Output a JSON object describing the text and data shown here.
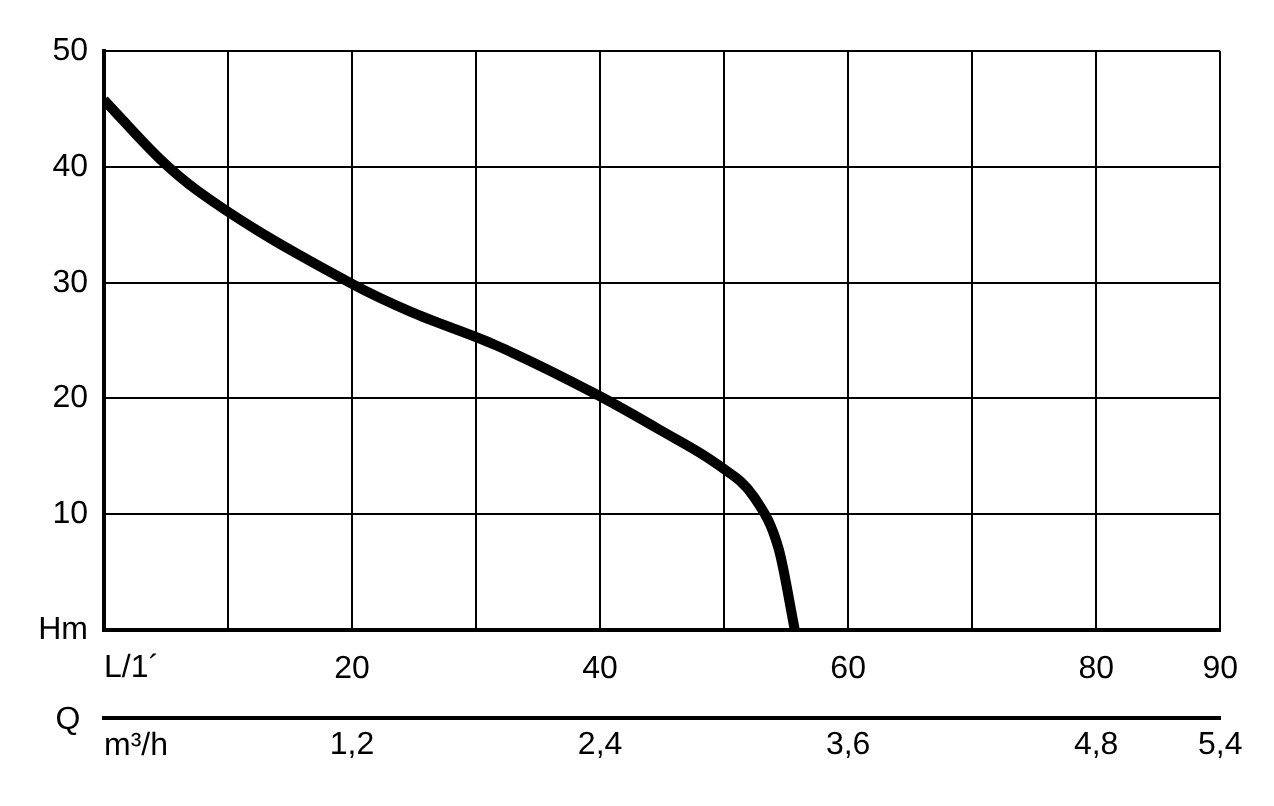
{
  "chart_data": {
    "type": "line",
    "xlabel": "L/1´",
    "x2label": "m³/h",
    "annotations": [
      "Q"
    ],
    "x": [
      0,
      4.5,
      7.6,
      20,
      24.7,
      31.6,
      39.8,
      44.8,
      49.6,
      52.4,
      54.4,
      55.7
    ],
    "series": [
      {
        "color": "#000000",
        "values": [
          45.8,
          40.7,
          37.9,
          29.9,
          27.5,
          24.6,
          20.3,
          17.3,
          14.2,
          11.5,
          7,
          0
        ]
      }
    ],
    "xlim": [
      0,
      90
    ],
    "xticks": [
      {
        "value": 0,
        "label": null
      },
      {
        "value": 10,
        "label": null
      },
      20,
      {
        "value": 30,
        "label": null
      },
      40,
      {
        "value": 50,
        "label": null
      },
      60,
      {
        "value": 70,
        "label": null
      },
      80,
      90
    ],
    "x2lim": [
      0,
      5.4
    ],
    "x2ticks": [
      {
        "value": 1.2,
        "label": "1,2"
      },
      {
        "value": 2.4,
        "label": "2,4"
      },
      {
        "value": 3.6,
        "label": "3,6"
      },
      {
        "value": 4.8,
        "label": "4,8"
      },
      {
        "value": 5.4,
        "label": "5,4"
      }
    ],
    "ylim": [
      0,
      50
    ],
    "yticks": [
      {
        "value": 0,
        "label": "Hm"
      },
      10,
      20,
      30,
      40,
      50
    ],
    "grid": true,
    "legend": false,
    "marker": "none",
    "line_style": "solid"
  }
}
